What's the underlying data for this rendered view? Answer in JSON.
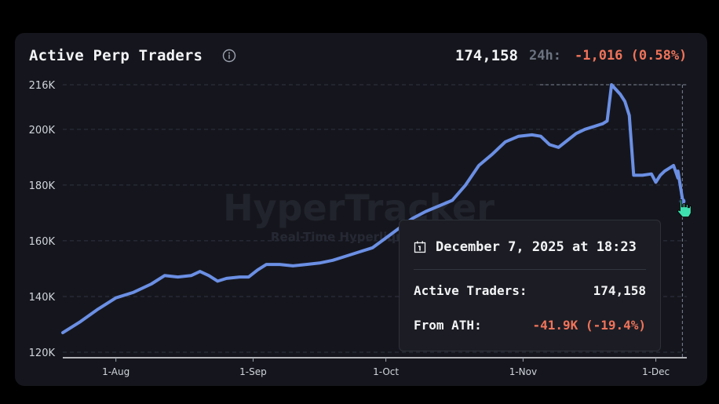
{
  "header": {
    "title": "Active Perp Traders",
    "current_value": "174,158",
    "change_label": "24h:",
    "change_value": "-1,016 (0.58%)"
  },
  "watermark": {
    "brand": "HyperTracker",
    "tagline": "Real-Time Hyperliquid insights tr"
  },
  "tooltip": {
    "date": "December 7, 2025 at 18:23",
    "rows": [
      {
        "label": "Active Traders:",
        "value": "174,158"
      },
      {
        "label": "From ATH:",
        "value": "-41.9K (-19.4%)"
      }
    ]
  },
  "colors": {
    "line": "#6b8fe4",
    "negative": "#f0735a",
    "cursor": "#3fe0b0"
  },
  "chart_data": {
    "type": "line",
    "title": "Active Perp Traders",
    "xlabel": "",
    "ylabel": "",
    "x_start": "2025-07-20",
    "x_end": "2025-12-08",
    "xticks": [
      {
        "date": "2025-08-01",
        "label": "1-Aug"
      },
      {
        "date": "2025-09-01",
        "label": "1-Sep"
      },
      {
        "date": "2025-10-01",
        "label": "1-Oct"
      },
      {
        "date": "2025-11-01",
        "label": "1-Nov"
      },
      {
        "date": "2025-12-01",
        "label": "1-Dec"
      }
    ],
    "yticks": [
      {
        "value": 120000,
        "label": "120K"
      },
      {
        "value": 140000,
        "label": "140K"
      },
      {
        "value": 160000,
        "label": "160K"
      },
      {
        "value": 180000,
        "label": "180K"
      },
      {
        "value": 200000,
        "label": "200K"
      },
      {
        "value": 216000,
        "label": "216K"
      }
    ],
    "ylim": [
      120000,
      216000
    ],
    "grid": true,
    "ath": 216000,
    "series": [
      {
        "values": [
          [
            "2025-07-20",
            127000
          ],
          [
            "2025-07-24",
            131000
          ],
          [
            "2025-07-28",
            135500
          ],
          [
            "2025-08-01",
            139500
          ],
          [
            "2025-08-05",
            141500
          ],
          [
            "2025-08-09",
            144500
          ],
          [
            "2025-08-12",
            147500
          ],
          [
            "2025-08-15",
            147000
          ],
          [
            "2025-08-18",
            147500
          ],
          [
            "2025-08-20",
            149000
          ],
          [
            "2025-08-22",
            147500
          ],
          [
            "2025-08-24",
            145500
          ],
          [
            "2025-08-26",
            146500
          ],
          [
            "2025-08-29",
            147000
          ],
          [
            "2025-08-31",
            147000
          ],
          [
            "2025-09-02",
            149500
          ],
          [
            "2025-09-04",
            151500
          ],
          [
            "2025-09-07",
            151500
          ],
          [
            "2025-09-10",
            151000
          ],
          [
            "2025-09-13",
            151500
          ],
          [
            "2025-09-16",
            152000
          ],
          [
            "2025-09-19",
            153000
          ],
          [
            "2025-09-22",
            154500
          ],
          [
            "2025-09-25",
            156000
          ],
          [
            "2025-09-28",
            157500
          ],
          [
            "2025-10-01",
            161000
          ],
          [
            "2025-10-04",
            164500
          ],
          [
            "2025-10-07",
            168000
          ],
          [
            "2025-10-10",
            170500
          ],
          [
            "2025-10-13",
            172500
          ],
          [
            "2025-10-16",
            174500
          ],
          [
            "2025-10-19",
            180000
          ],
          [
            "2025-10-22",
            187000
          ],
          [
            "2025-10-25",
            191000
          ],
          [
            "2025-10-28",
            195500
          ],
          [
            "2025-10-31",
            197500
          ],
          [
            "2025-11-03",
            198000
          ],
          [
            "2025-11-05",
            197500
          ],
          [
            "2025-11-07",
            194500
          ],
          [
            "2025-11-09",
            193500
          ],
          [
            "2025-11-11",
            196000
          ],
          [
            "2025-11-13",
            198500
          ],
          [
            "2025-11-15",
            200000
          ],
          [
            "2025-11-17",
            201000
          ],
          [
            "2025-11-19",
            202000
          ],
          [
            "2025-11-20",
            203000
          ],
          [
            "2025-11-21",
            216000
          ],
          [
            "2025-11-23",
            212500
          ],
          [
            "2025-11-24",
            210000
          ],
          [
            "2025-11-25",
            205000
          ],
          [
            "2025-11-26",
            183500
          ],
          [
            "2025-11-28",
            183500
          ],
          [
            "2025-11-30",
            184000
          ],
          [
            "2025-12-01",
            181000
          ],
          [
            "2025-12-02",
            183500
          ],
          [
            "2025-12-03",
            185000
          ],
          [
            "2025-12-04",
            186000
          ],
          [
            "2025-12-05",
            187000
          ],
          [
            "2025-12-06",
            182500
          ],
          [
            "2025-12-06",
            185000
          ],
          [
            "2025-12-07",
            175000
          ],
          [
            "2025-12-07",
            174158
          ]
        ]
      }
    ]
  }
}
